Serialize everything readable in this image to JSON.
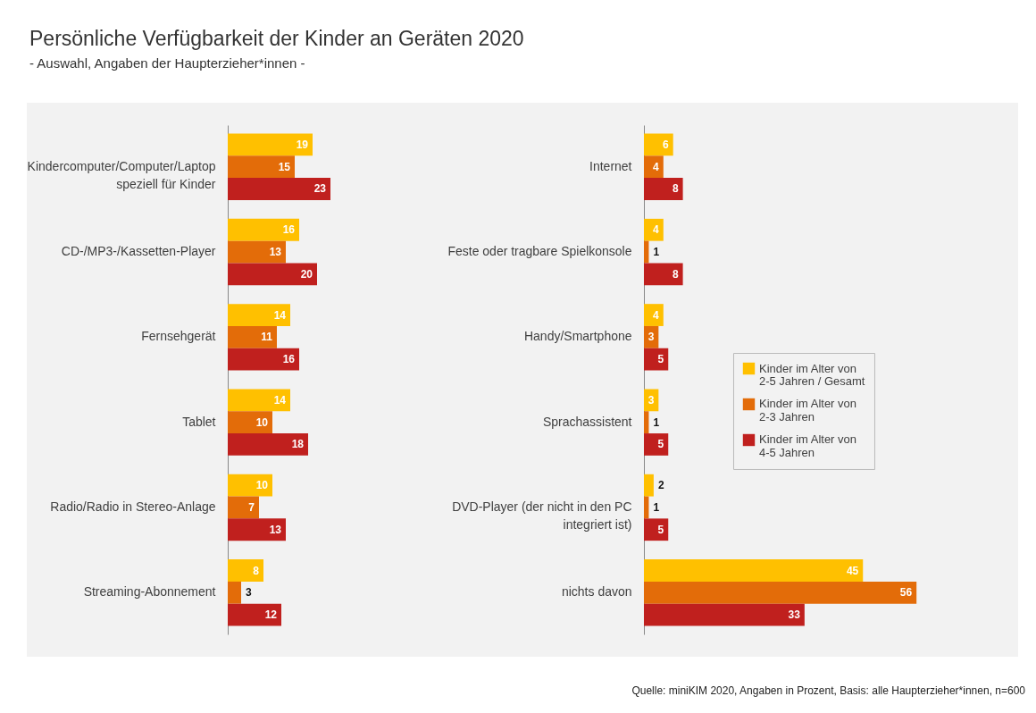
{
  "chart_data": [
    {
      "type": "bar",
      "orientation": "horizontal",
      "title": "Persönliche Verfügbarkeit der Kinder an Geräten 2020",
      "subtitle": "- Auswahl, Angaben der Haupterzieher*innen -",
      "categories": [
        "Kindercomputer/Computer/Laptop speziell für Kinder",
        "CD-/MP3-/Kassetten-Player",
        "Fernsehgerät",
        "Tablet",
        "Radio/Radio in Stereo-Anlage",
        "Streaming-Abonnement"
      ],
      "series": [
        {
          "color": "#ffc000",
          "values": [
            19,
            16,
            14,
            14,
            10,
            8
          ]
        },
        {
          "color": "#e36c09",
          "values": [
            15,
            13,
            11,
            10,
            7,
            3
          ]
        },
        {
          "color": "#c0201e",
          "values": [
            23,
            20,
            16,
            18,
            13,
            12
          ]
        }
      ],
      "data_labels": true
    },
    {
      "type": "bar",
      "orientation": "horizontal",
      "categories": [
        "Internet",
        "Feste oder tragbare Spielkonsole",
        "Handy/Smartphone",
        "Sprachassistent",
        "DVD-Player (der nicht in den PC integriert ist)",
        "nichts davon"
      ],
      "series": [
        {
          "name": "Kinder im Alter von 2-5 Jahren / Gesamt",
          "color": "#ffc000",
          "values": [
            6,
            4,
            4,
            3,
            2,
            45
          ]
        },
        {
          "name": "Kinder im Alter von 2-3 Jahren",
          "color": "#e36c09",
          "values": [
            4,
            1,
            3,
            1,
            1,
            56
          ]
        },
        {
          "name": "Kinder im Alter von 4-5 Jahren",
          "color": "#c0201e",
          "values": [
            8,
            8,
            5,
            5,
            5,
            33
          ]
        }
      ],
      "data_labels": true,
      "legend": "right",
      "annotations": [
        "Quelle: miniKIM 2020, Angaben in Prozent, Basis: alle Haupterzieher*innen, n=600"
      ]
    }
  ]
}
